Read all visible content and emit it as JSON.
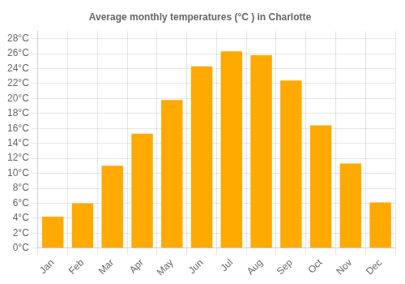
{
  "chart_data": {
    "type": "bar",
    "title": "Average monthly temperatures (°C ) in Charlotte",
    "categories": [
      "Jan",
      "Feb",
      "Mar",
      "Apr",
      "May",
      "Jun",
      "Jul",
      "Aug",
      "Sep",
      "Oct",
      "Nov",
      "Dec"
    ],
    "values": [
      4.2,
      6.0,
      11.0,
      15.3,
      19.8,
      24.3,
      26.3,
      25.8,
      22.4,
      16.4,
      11.3,
      6.1
    ],
    "color": "#FFAA00",
    "ylim": [
      0,
      29
    ],
    "yticks": [
      {
        "value": 0,
        "label": "0°C"
      },
      {
        "value": 2,
        "label": "2°C"
      },
      {
        "value": 4,
        "label": "4°C"
      },
      {
        "value": 6,
        "label": "6°C"
      },
      {
        "value": 8,
        "label": "8°C"
      },
      {
        "value": 10,
        "label": "10°C"
      },
      {
        "value": 12,
        "label": "12°C"
      },
      {
        "value": 14,
        "label": "14°C"
      },
      {
        "value": 16,
        "label": "16°C"
      },
      {
        "value": 18,
        "label": "18°C"
      },
      {
        "value": 20,
        "label": "20°C"
      },
      {
        "value": 22,
        "label": "22°C"
      },
      {
        "value": 24,
        "label": "24°C"
      },
      {
        "value": 26,
        "label": "26°C"
      },
      {
        "value": 28,
        "label": "28°C"
      }
    ],
    "grid": true
  }
}
